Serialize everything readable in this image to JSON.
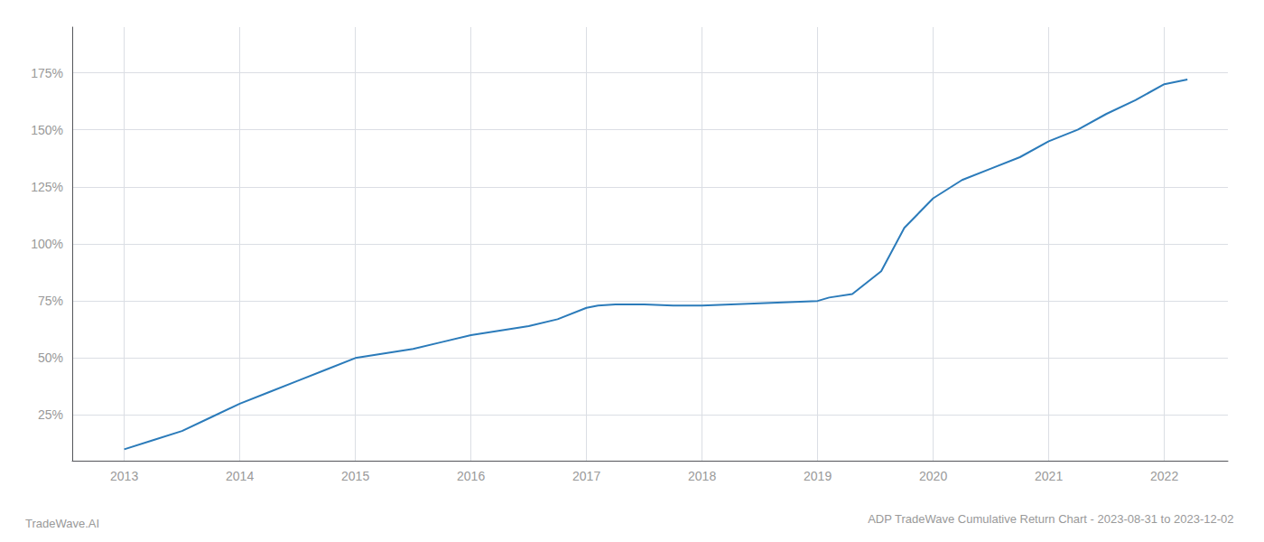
{
  "chart_data": {
    "type": "line",
    "title": "ADP TradeWave Cumulative Return Chart - 2023-08-31 to 2023-12-02",
    "annotations": [
      "TradeWave.AI"
    ],
    "color": "#2b7bba",
    "x": [
      2013.0,
      2013.25,
      2013.5,
      2013.75,
      2014.0,
      2014.25,
      2014.5,
      2014.75,
      2015.0,
      2015.25,
      2015.5,
      2015.75,
      2016.0,
      2016.25,
      2016.5,
      2016.75,
      2017.0,
      2017.1,
      2017.25,
      2017.5,
      2017.75,
      2018.0,
      2018.25,
      2018.5,
      2018.75,
      2019.0,
      2019.1,
      2019.3,
      2019.55,
      2019.75,
      2020.0,
      2020.25,
      2020.5,
      2020.75,
      2021.0,
      2021.25,
      2021.5,
      2021.75,
      2022.0,
      2022.2
    ],
    "values": [
      10.0,
      14.0,
      18.0,
      24.0,
      30.0,
      35.0,
      40.0,
      45.0,
      50.0,
      52.0,
      54.0,
      57.0,
      60.0,
      62.0,
      64.0,
      67.0,
      72.0,
      73.0,
      73.5,
      73.5,
      73.0,
      73.0,
      73.5,
      74.0,
      74.5,
      75.0,
      76.5,
      78.0,
      88.0,
      107.0,
      120.0,
      128.0,
      133.0,
      138.0,
      145.0,
      150.0,
      157.0,
      163.0,
      170.0,
      172.0
    ],
    "xlim": [
      2012.55,
      2022.55
    ],
    "xticks": [
      2013,
      2014,
      2015,
      2016,
      2017,
      2018,
      2019,
      2020,
      2021,
      2022
    ],
    "ylim": [
      5,
      195
    ],
    "yticks": [
      {
        "value": 25,
        "label": "25%"
      },
      {
        "value": 50,
        "label": "50%"
      },
      {
        "value": 75,
        "label": "75%"
      },
      {
        "value": 100,
        "label": "100%"
      },
      {
        "value": 125,
        "label": "125%"
      },
      {
        "value": 150,
        "label": "150%"
      },
      {
        "value": 175,
        "label": "175%"
      }
    ],
    "grid": true
  }
}
